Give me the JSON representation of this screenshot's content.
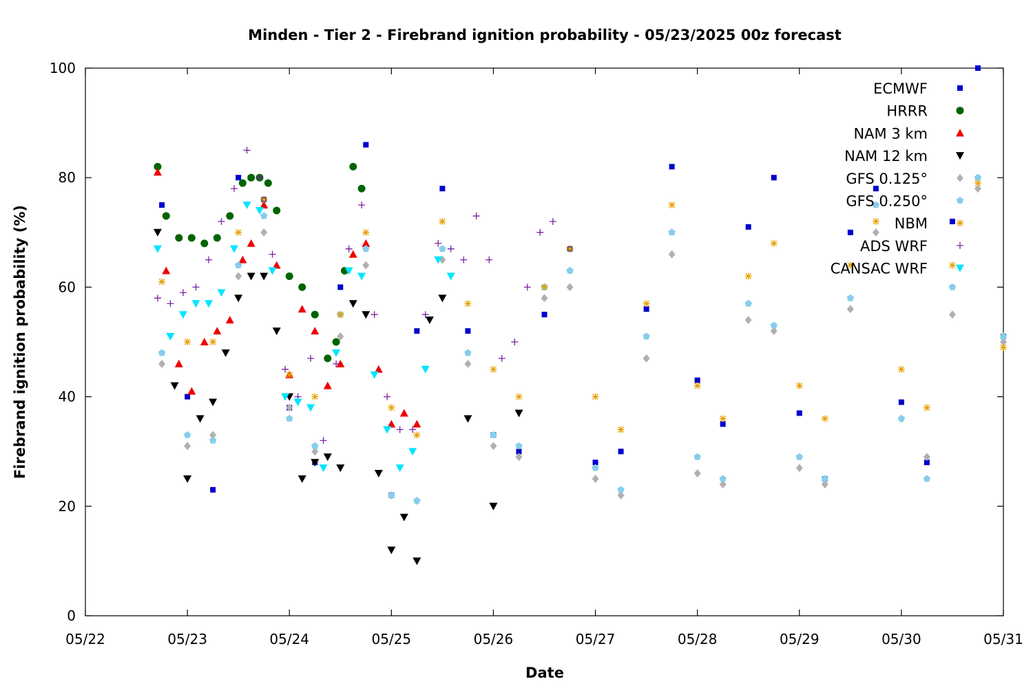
{
  "chart_data": {
    "type": "scatter",
    "title": "Minden - Tier 2 - Firebrand ignition probability - 05/23/2025 00z forecast",
    "xlabel": "Date",
    "ylabel": "Firebrand ignition probability (%)",
    "xlim": [
      "05/22",
      "05/31"
    ],
    "ylim": [
      0,
      100
    ],
    "xticks": [
      "05/22",
      "05/23",
      "05/24",
      "05/25",
      "05/26",
      "05/27",
      "05/28",
      "05/29",
      "05/30",
      "05/31"
    ],
    "yticks": [
      "0",
      "20",
      "40",
      "60",
      "80",
      "100"
    ],
    "grid": false,
    "legend_position": "top-right",
    "series": [
      {
        "name": "ECMWF",
        "marker": "square",
        "color": "#0000cc",
        "x": [
          "05/22 18:00",
          "05/23 00:00",
          "05/23 06:00",
          "05/23 12:00",
          "05/23 18:00",
          "05/24 00:00",
          "05/24 06:00",
          "05/24 12:00",
          "05/24 18:00",
          "05/25 00:00",
          "05/25 06:00",
          "05/25 12:00",
          "05/25 18:00",
          "05/26 00:00",
          "05/26 06:00",
          "05/26 12:00",
          "05/26 18:00",
          "05/27 00:00",
          "05/27 06:00",
          "05/27 12:00",
          "05/27 18:00",
          "05/28 00:00",
          "05/28 06:00",
          "05/28 12:00",
          "05/28 18:00",
          "05/29 00:00",
          "05/29 06:00",
          "05/29 12:00",
          "05/29 18:00",
          "05/30 00:00",
          "05/30 06:00",
          "05/30 12:00",
          "05/30 18:00",
          "05/31 00:00"
        ],
        "y": [
          75,
          40,
          23,
          80,
          76,
          38,
          28,
          60,
          86,
          22,
          52,
          78,
          52,
          33,
          30,
          55,
          67,
          28,
          30,
          56,
          82,
          43,
          35,
          71,
          80,
          37,
          25,
          70,
          78,
          39,
          28,
          72,
          100,
          51
        ]
      },
      {
        "name": "HRRR",
        "marker": "circle",
        "color": "#006400",
        "x": [
          "05/22 17:00",
          "05/22 19:00",
          "05/22 22:00",
          "05/23 01:00",
          "05/23 04:00",
          "05/23 07:00",
          "05/23 10:00",
          "05/23 13:00",
          "05/23 15:00",
          "05/23 17:00",
          "05/23 19:00",
          "05/23 21:00",
          "05/24 00:00",
          "05/24 03:00",
          "05/24 06:00",
          "05/24 09:00",
          "05/24 11:00",
          "05/24 13:00",
          "05/24 15:00",
          "05/24 17:00"
        ],
        "y": [
          82,
          73,
          69,
          69,
          68,
          69,
          73,
          79,
          80,
          80,
          79,
          74,
          62,
          60,
          55,
          47,
          50,
          63,
          82,
          78
        ]
      },
      {
        "name": "NAM 3 km",
        "marker": "triangle-up",
        "color": "#ee0000",
        "x": [
          "05/22 17:00",
          "05/22 19:00",
          "05/22 22:00",
          "05/23 01:00",
          "05/23 04:00",
          "05/23 07:00",
          "05/23 10:00",
          "05/23 13:00",
          "05/23 15:00",
          "05/23 18:00",
          "05/23 21:00",
          "05/24 00:00",
          "05/24 03:00",
          "05/24 06:00",
          "05/24 09:00",
          "05/24 12:00",
          "05/24 15:00",
          "05/24 18:00",
          "05/24 21:00",
          "05/25 00:00",
          "05/25 03:00",
          "05/25 06:00"
        ],
        "y": [
          81,
          63,
          46,
          41,
          50,
          52,
          54,
          65,
          68,
          75,
          64,
          44,
          56,
          52,
          42,
          46,
          66,
          68,
          45,
          35,
          37,
          35
        ]
      },
      {
        "name": "NAM 12 km",
        "marker": "triangle-down",
        "color": "#000000",
        "x": [
          "05/22 17:00",
          "05/22 21:00",
          "05/23 00:00",
          "05/23 03:00",
          "05/23 06:00",
          "05/23 09:00",
          "05/23 12:00",
          "05/23 15:00",
          "05/23 18:00",
          "05/23 21:00",
          "05/24 00:00",
          "05/24 03:00",
          "05/24 06:00",
          "05/24 09:00",
          "05/24 12:00",
          "05/24 15:00",
          "05/24 18:00",
          "05/24 21:00",
          "05/25 00:00",
          "05/25 03:00",
          "05/25 06:00",
          "05/25 09:00",
          "05/25 12:00",
          "05/25 18:00",
          "05/26 00:00",
          "05/26 06:00"
        ],
        "y": [
          70,
          42,
          25,
          36,
          39,
          48,
          58,
          62,
          62,
          52,
          40,
          25,
          28,
          29,
          27,
          57,
          55,
          26,
          12,
          18,
          10,
          54,
          58,
          36,
          20,
          37
        ]
      },
      {
        "name": "GFS 0.125°",
        "marker": "diamond",
        "color": "#b0b0b0",
        "x": [
          "05/22 18:00",
          "05/23 00:00",
          "05/23 06:00",
          "05/23 12:00",
          "05/23 18:00",
          "05/24 00:00",
          "05/24 06:00",
          "05/24 12:00",
          "05/24 18:00",
          "05/25 00:00",
          "05/25 06:00",
          "05/25 12:00",
          "05/25 18:00",
          "05/26 00:00",
          "05/26 06:00",
          "05/26 12:00",
          "05/26 18:00",
          "05/27 00:00",
          "05/27 06:00",
          "05/27 12:00",
          "05/27 18:00",
          "05/28 00:00",
          "05/28 06:00",
          "05/28 12:00",
          "05/28 18:00",
          "05/29 00:00",
          "05/29 06:00",
          "05/29 12:00",
          "05/29 18:00",
          "05/30 00:00",
          "05/30 06:00",
          "05/30 12:00",
          "05/30 18:00",
          "05/31 00:00"
        ],
        "y": [
          46,
          31,
          33,
          62,
          70,
          38,
          30,
          51,
          64,
          22,
          21,
          65,
          46,
          31,
          29,
          58,
          60,
          25,
          22,
          47,
          66,
          26,
          24,
          54,
          52,
          27,
          24,
          56,
          70,
          36,
          29,
          55,
          78,
          50
        ]
      },
      {
        "name": "GFS 0.250°",
        "marker": "pentagon",
        "color": "#87ceeb",
        "x": [
          "05/22 18:00",
          "05/23 00:00",
          "05/23 06:00",
          "05/23 12:00",
          "05/23 18:00",
          "05/24 00:00",
          "05/24 06:00",
          "05/24 12:00",
          "05/24 18:00",
          "05/25 00:00",
          "05/25 06:00",
          "05/25 12:00",
          "05/25 18:00",
          "05/26 00:00",
          "05/26 06:00",
          "05/26 12:00",
          "05/26 18:00",
          "05/27 00:00",
          "05/27 06:00",
          "05/27 12:00",
          "05/27 18:00",
          "05/28 00:00",
          "05/28 06:00",
          "05/28 12:00",
          "05/28 18:00",
          "05/29 00:00",
          "05/29 06:00",
          "05/29 12:00",
          "05/29 18:00",
          "05/30 00:00",
          "05/30 06:00",
          "05/30 12:00",
          "05/30 18:00",
          "05/31 00:00"
        ],
        "y": [
          48,
          33,
          32,
          64,
          73,
          36,
          31,
          55,
          67,
          22,
          21,
          67,
          48,
          33,
          31,
          60,
          63,
          27,
          23,
          51,
          70,
          29,
          25,
          57,
          53,
          29,
          25,
          58,
          75,
          36,
          25,
          60,
          80,
          51
        ]
      },
      {
        "name": "NBM",
        "marker": "asterisk",
        "color": "#e69f00",
        "x": [
          "05/22 18:00",
          "05/23 00:00",
          "05/23 06:00",
          "05/23 12:00",
          "05/23 18:00",
          "05/24 00:00",
          "05/24 06:00",
          "05/24 12:00",
          "05/24 18:00",
          "05/25 00:00",
          "05/25 06:00",
          "05/25 12:00",
          "05/25 18:00",
          "05/26 00:00",
          "05/26 06:00",
          "05/26 12:00",
          "05/26 18:00",
          "05/27 00:00",
          "05/27 06:00",
          "05/27 12:00",
          "05/27 18:00",
          "05/28 00:00",
          "05/28 06:00",
          "05/28 12:00",
          "05/28 18:00",
          "05/29 00:00",
          "05/29 06:00",
          "05/29 12:00",
          "05/29 18:00",
          "05/30 00:00",
          "05/30 06:00",
          "05/30 12:00",
          "05/30 18:00",
          "05/31 00:00"
        ],
        "y": [
          61,
          50,
          50,
          70,
          76,
          44,
          40,
          55,
          70,
          38,
          33,
          72,
          57,
          45,
          40,
          60,
          67,
          40,
          34,
          57,
          75,
          42,
          36,
          62,
          68,
          42,
          36,
          64,
          72,
          45,
          38,
          64,
          79,
          49
        ]
      },
      {
        "name": "ADS WRF",
        "marker": "plus",
        "color": "#7b1fa2",
        "x": [
          "05/22 17:00",
          "05/22 20:00",
          "05/22 23:00",
          "05/23 02:00",
          "05/23 05:00",
          "05/23 08:00",
          "05/23 11:00",
          "05/23 14:00",
          "05/23 17:00",
          "05/23 20:00",
          "05/23 23:00",
          "05/24 02:00",
          "05/24 05:00",
          "05/24 08:00",
          "05/24 11:00",
          "05/24 14:00",
          "05/24 17:00",
          "05/24 20:00",
          "05/24 23:00",
          "05/25 02:00",
          "05/25 05:00",
          "05/25 08:00",
          "05/25 11:00",
          "05/25 14:00",
          "05/25 17:00",
          "05/25 20:00",
          "05/25 23:00",
          "05/26 02:00",
          "05/26 05:00",
          "05/26 08:00",
          "05/26 11:00",
          "05/26 14:00"
        ],
        "y": [
          58,
          57,
          59,
          60,
          65,
          72,
          78,
          85,
          80,
          66,
          45,
          40,
          47,
          32,
          46,
          67,
          75,
          55,
          40,
          34,
          34,
          55,
          68,
          67,
          65,
          73,
          65,
          47,
          50,
          60,
          70,
          72
        ]
      },
      {
        "name": "CANSAC WRF",
        "marker": "triangle-down",
        "color": "#00e5ff",
        "x": [
          "05/22 17:00",
          "05/22 20:00",
          "05/22 23:00",
          "05/23 02:00",
          "05/23 05:00",
          "05/23 08:00",
          "05/23 11:00",
          "05/23 14:00",
          "05/23 17:00",
          "05/23 20:00",
          "05/23 23:00",
          "05/24 02:00",
          "05/24 05:00",
          "05/24 08:00",
          "05/24 11:00",
          "05/24 14:00",
          "05/24 17:00",
          "05/24 20:00",
          "05/24 23:00",
          "05/25 02:00",
          "05/25 05:00",
          "05/25 08:00",
          "05/25 11:00",
          "05/25 14:00"
        ],
        "y": [
          67,
          51,
          55,
          57,
          57,
          59,
          67,
          75,
          74,
          63,
          40,
          39,
          38,
          27,
          48,
          63,
          62,
          44,
          34,
          27,
          30,
          45,
          65,
          62
        ]
      }
    ]
  }
}
